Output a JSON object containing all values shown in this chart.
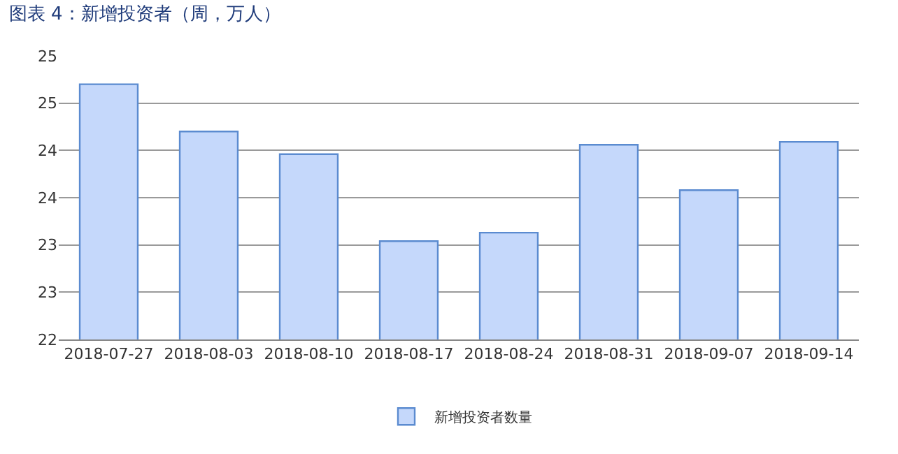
{
  "chart_data": {
    "type": "bar",
    "title": "图表 4：新增投资者（周，万人）",
    "categories": [
      "2018-07-27",
      "2018-08-03",
      "2018-08-10",
      "2018-08-17",
      "2018-08-24",
      "2018-08-31",
      "2018-09-07",
      "2018-09-14"
    ],
    "series": [
      {
        "name": "新增投资者数量",
        "color": "#c5d8fb",
        "values": [
          24.7,
          24.2,
          23.96,
          23.04,
          23.13,
          24.06,
          23.58,
          24.09
        ]
      }
    ],
    "ylim": [
      22,
      25
    ],
    "yticks": [
      22,
      {
        "value": 22.5,
        "label": "23"
      },
      23,
      {
        "value": 23.5,
        "label": "24"
      },
      24,
      {
        "value": 24.5,
        "label": "25"
      },
      25
    ],
    "grid": "y",
    "legend": "bottom"
  }
}
